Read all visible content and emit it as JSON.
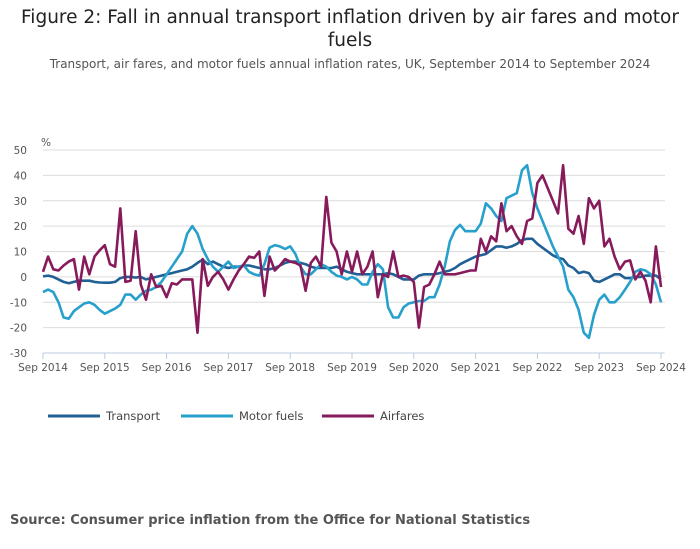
{
  "title": "Figure 2: Fall in annual transport inflation driven by air fares and motor fuels",
  "subtitle": "Transport, air fares, and motor fuels annual inflation rates, UK, September 2014 to September 2024",
  "source": "Source: Consumer price inflation from the Office for National Statistics",
  "chart_data": {
    "type": "line",
    "title": "Figure 2: Fall in annual transport inflation driven by air fares and motor fuels",
    "ylabel": "%",
    "ylim": [
      -30,
      50
    ],
    "yticks": [
      "50",
      "40",
      "30",
      "20",
      "10",
      "0",
      "-10",
      "-20",
      "-30"
    ],
    "xticks": [
      "Sep 2014",
      "Sep 2015",
      "Sep 2016",
      "Sep 2017",
      "Sep 2018",
      "Sep 2019",
      "Sep 2020",
      "Sep 2021",
      "Sep 2022",
      "Sep 2023",
      "Sep 2024"
    ],
    "x_start": "Sep 2014",
    "x_end": "Sep 2024",
    "frequency": "monthly",
    "grid": true,
    "legend": "bottom-left",
    "series": [
      {
        "name": "Transport",
        "color": "#206095",
        "values": [
          0.2,
          0.5,
          0,
          -1,
          -2,
          -2.5,
          -2,
          -1.5,
          -1.5,
          -1.5,
          -2,
          -2.2,
          -2.3,
          -2.3,
          -2,
          -0.5,
          0,
          0,
          -0.3,
          0,
          -1,
          -0.5,
          0,
          0.5,
          1,
          1.5,
          2,
          2.5,
          3,
          4,
          5.5,
          6.8,
          5,
          6,
          5,
          4,
          3.5,
          4,
          4,
          4.5,
          4.5,
          4,
          3.5,
          3,
          3,
          3.5,
          4.5,
          5.5,
          6,
          6,
          5.5,
          5,
          4,
          3.5,
          3.5,
          3.5,
          3.5,
          4,
          3,
          2,
          1.5,
          1,
          1,
          1,
          1,
          1,
          1,
          1.5,
          1,
          0,
          -1,
          -1,
          -1,
          0.5,
          1,
          1,
          1,
          1.5,
          2,
          2.5,
          3.5,
          5,
          6,
          7,
          8,
          8.5,
          9,
          10.5,
          12,
          12,
          11.5,
          12,
          13,
          14.5,
          15,
          15,
          13,
          11.5,
          10,
          8.5,
          7.5,
          7,
          4.5,
          3.5,
          1.5,
          2,
          1.5,
          -1.5,
          -2,
          -1,
          0,
          1,
          1,
          -0.5,
          -0.5,
          0,
          0,
          0.5,
          0.5,
          0.5,
          -1
        ]
      },
      {
        "name": "Motor fuels",
        "color": "#27a0cc",
        "values": [
          -6,
          -5,
          -6,
          -10,
          -16,
          -16.5,
          -13.5,
          -12,
          -10.5,
          -10,
          -11,
          -13,
          -14.5,
          -13.5,
          -12.5,
          -11,
          -7,
          -7,
          -9,
          -7,
          -5.5,
          -5,
          -4,
          -2,
          1,
          4,
          7,
          10,
          17,
          20,
          17,
          11,
          7,
          4,
          2,
          4,
          6,
          3.5,
          4,
          4.5,
          2,
          1,
          0.5,
          5,
          11.5,
          12.5,
          12,
          11,
          12,
          9,
          4,
          1,
          1,
          3,
          5,
          4,
          2,
          0.5,
          0,
          -1,
          0,
          -1,
          -3,
          -3,
          2,
          5,
          3,
          -12,
          -16,
          -16,
          -12,
          -10.5,
          -10,
          -9.5,
          -9.5,
          -8,
          -8,
          -3,
          4,
          14,
          18.5,
          20.5,
          18,
          18,
          18,
          21,
          29,
          27,
          24,
          22,
          31,
          32,
          33,
          42,
          44,
          33,
          27,
          22,
          17,
          12,
          8,
          4,
          -5,
          -8,
          -13,
          -22,
          -24,
          -15,
          -9,
          -7,
          -10,
          -10,
          -8,
          -5,
          -2,
          2,
          3,
          2.5,
          1,
          -3,
          -10
        ]
      },
      {
        "name": "Airfares",
        "color": "#871a5b",
        "values": [
          2,
          8,
          3,
          2.5,
          4.5,
          6,
          7,
          -5,
          8,
          1,
          8,
          10.5,
          12.5,
          5,
          4,
          27,
          -2,
          -1.5,
          18,
          -3,
          -9,
          1,
          -4,
          -3.5,
          -8,
          -2.5,
          -3,
          -1,
          -1,
          -1,
          -22,
          7,
          -3.5,
          0,
          2,
          -1,
          -5,
          -1,
          2.5,
          5,
          8,
          7.5,
          10,
          -7.5,
          8,
          2.5,
          4.5,
          7,
          6,
          5.5,
          4.5,
          -5.5,
          5.5,
          8,
          4,
          31.5,
          13.5,
          10,
          1,
          10,
          2,
          10,
          1,
          4,
          10,
          -8,
          1,
          0,
          10,
          0,
          0.5,
          0,
          -2,
          -20,
          -4,
          -3,
          1,
          6,
          1,
          1,
          1,
          1.5,
          2,
          2.5,
          2.5,
          15,
          10,
          16,
          14,
          29,
          18,
          20,
          16,
          13,
          22,
          23,
          37,
          40,
          35,
          30,
          25,
          44,
          19,
          17,
          24,
          13,
          31,
          27,
          30,
          12,
          15,
          8,
          3,
          6,
          6.5,
          -1,
          2,
          -1.5,
          -10,
          12,
          -4
        ]
      }
    ]
  }
}
